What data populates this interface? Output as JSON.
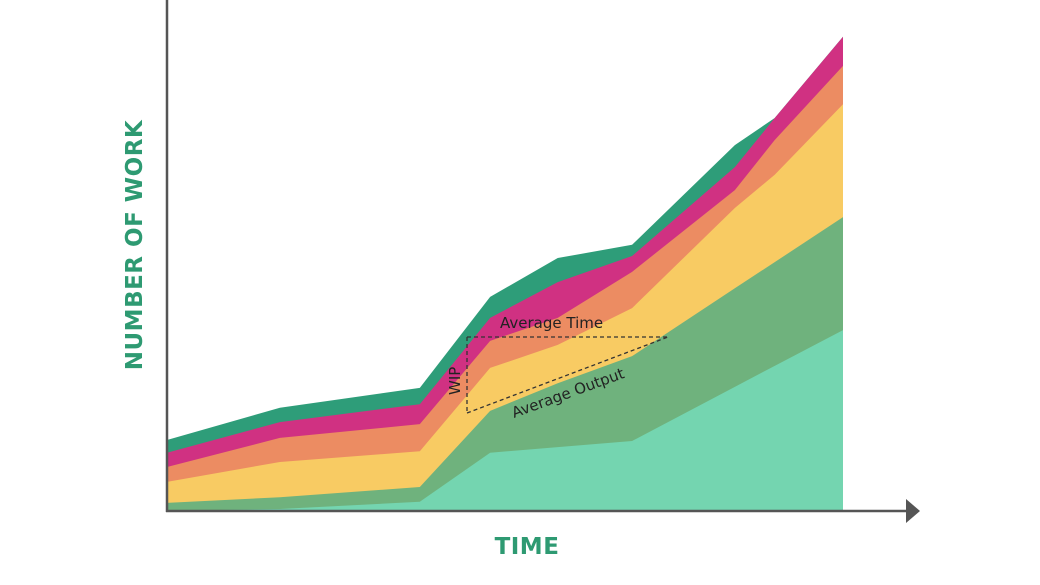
{
  "chart_data": {
    "type": "area",
    "stacked": true,
    "title": "",
    "xlabel": "TIME",
    "ylabel": "NUMBER OF WORK",
    "xlim": [
      0,
      100
    ],
    "ylim": [
      0,
      100
    ],
    "grid": false,
    "x": [
      0,
      16.7,
      37.4,
      47.8,
      57.8,
      68.8,
      84.0,
      89.9,
      100
    ],
    "series_cumulative": [
      {
        "name": "band-1",
        "color": "#74d5b0",
        "values": [
          0,
          0.4,
          1.8,
          11.4,
          12.5,
          13.7,
          24.3,
          28.4,
          35.4
        ]
      },
      {
        "name": "band-2",
        "color": "#6fb27d",
        "values": [
          1.6,
          2.7,
          4.7,
          19.6,
          25.0,
          30.3,
          43.6,
          48.7,
          57.5
        ]
      },
      {
        "name": "band-3",
        "color": "#f8cb63",
        "values": [
          5.7,
          9.6,
          11.7,
          28.0,
          32.5,
          39.7,
          59.3,
          65.8,
          79.6
        ]
      },
      {
        "name": "band-4",
        "color": "#ec8c62",
        "values": [
          8.6,
          14.3,
          17.0,
          33.3,
          37.8,
          46.8,
          62.8,
          72.6,
          87.1
        ]
      },
      {
        "name": "band-5",
        "color": "#d03182",
        "values": [
          11.4,
          17.4,
          20.9,
          37.8,
          44.8,
          49.9,
          67.3,
          76.9,
          92.8
        ]
      },
      {
        "name": "band-6",
        "color": "#2e9d79",
        "values": [
          13.9,
          20.2,
          24.1,
          41.9,
          49.5,
          52.1,
          71.6,
          76.9,
          92.8
        ]
      }
    ],
    "annotations": {
      "average_time": "Average Time",
      "wip": "WIP",
      "average_output": "Average Output"
    },
    "axis_title_color": "#2e9a72",
    "axis_color": "#555555"
  }
}
